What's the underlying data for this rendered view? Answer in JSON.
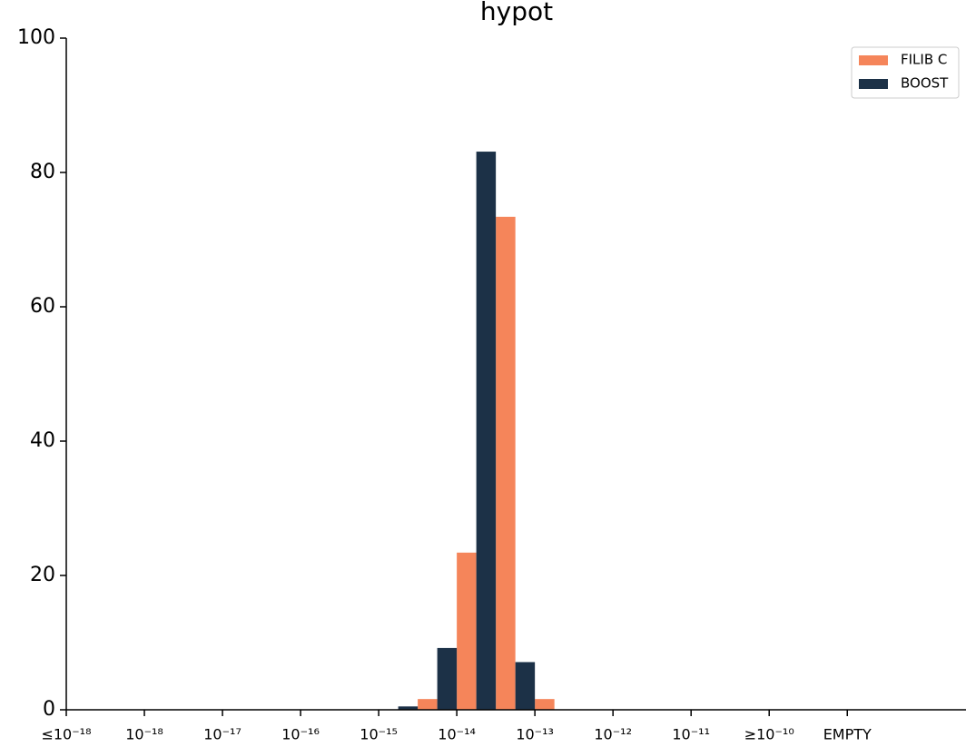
{
  "chart_data": {
    "type": "bar",
    "title": "hypot",
    "x": [
      4.25,
      4.75,
      5.25,
      5.75
    ],
    "series": [
      {
        "name": "FILIB C",
        "color": "#f5855a",
        "values": [
          1.6,
          23.4,
          73.4,
          1.6
        ]
      },
      {
        "name": "BOOST",
        "color": "#1c3147",
        "values": [
          0.5,
          9.2,
          83.1,
          7.1
        ]
      }
    ],
    "xlim": [
      0,
      11.52
    ],
    "xticks": [
      {
        "value": 0,
        "label": "≤10⁻¹⁸"
      },
      {
        "value": 1,
        "label": "10⁻¹⁸"
      },
      {
        "value": 2,
        "label": "10⁻¹⁷"
      },
      {
        "value": 3,
        "label": "10⁻¹⁶"
      },
      {
        "value": 4,
        "label": "10⁻¹⁵"
      },
      {
        "value": 5,
        "label": "10⁻¹⁴"
      },
      {
        "value": 6,
        "label": "10⁻¹³"
      },
      {
        "value": 7,
        "label": "10⁻¹²"
      },
      {
        "value": 8,
        "label": "10⁻¹¹"
      },
      {
        "value": 9,
        "label": "≥10⁻¹⁰"
      },
      {
        "value": 10,
        "label": "EMPTY"
      }
    ],
    "ylim": [
      0,
      100
    ],
    "yticks": [
      0,
      20,
      40,
      60,
      80,
      100
    ],
    "legend": "upper right"
  }
}
